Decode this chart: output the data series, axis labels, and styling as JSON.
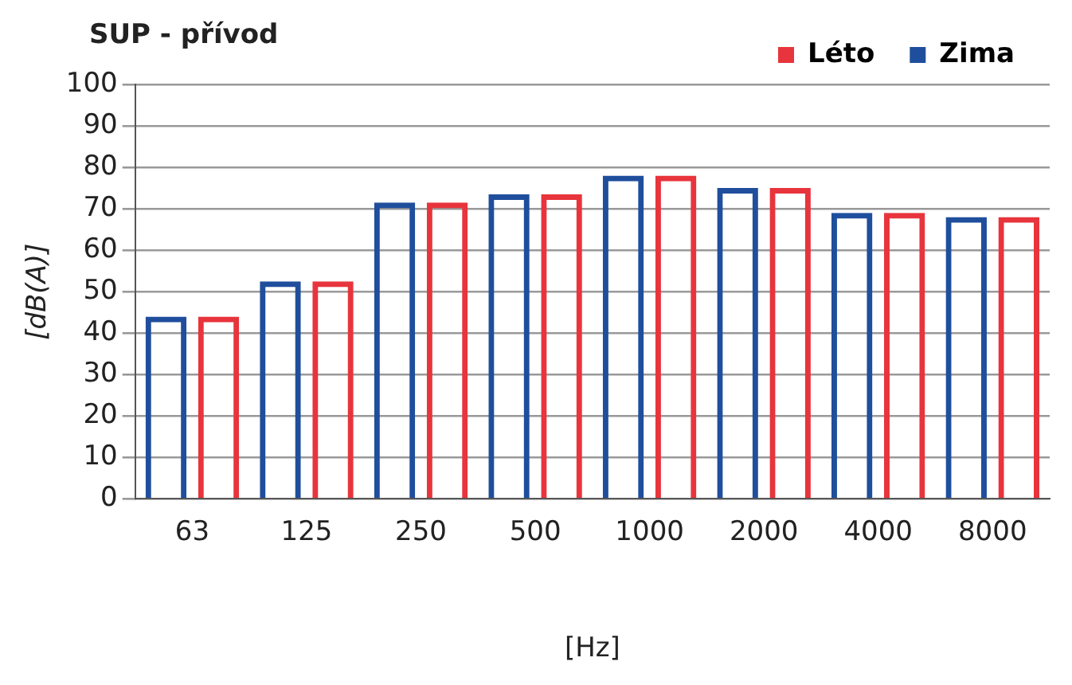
{
  "chart_data": {
    "type": "bar",
    "title": "SUP - přívod",
    "xlabel": "[Hz]",
    "ylabel": "[dB(A)]",
    "categories": [
      "63",
      "125",
      "250",
      "500",
      "1000",
      "2000",
      "4000",
      "8000"
    ],
    "series": [
      {
        "name": "Zima",
        "color": "#1f4e9c",
        "values": [
          44,
          52.5,
          71.5,
          73.5,
          78,
          75,
          69,
          68
        ]
      },
      {
        "name": "Léto",
        "color": "#e8343c",
        "values": [
          44,
          52.5,
          71.5,
          73.5,
          78,
          75,
          69,
          68
        ]
      }
    ],
    "ylim": [
      0,
      100
    ],
    "yticks": [
      0,
      10,
      20,
      30,
      40,
      50,
      60,
      70,
      80,
      90,
      100
    ],
    "grid": "y",
    "legend": "top right"
  }
}
